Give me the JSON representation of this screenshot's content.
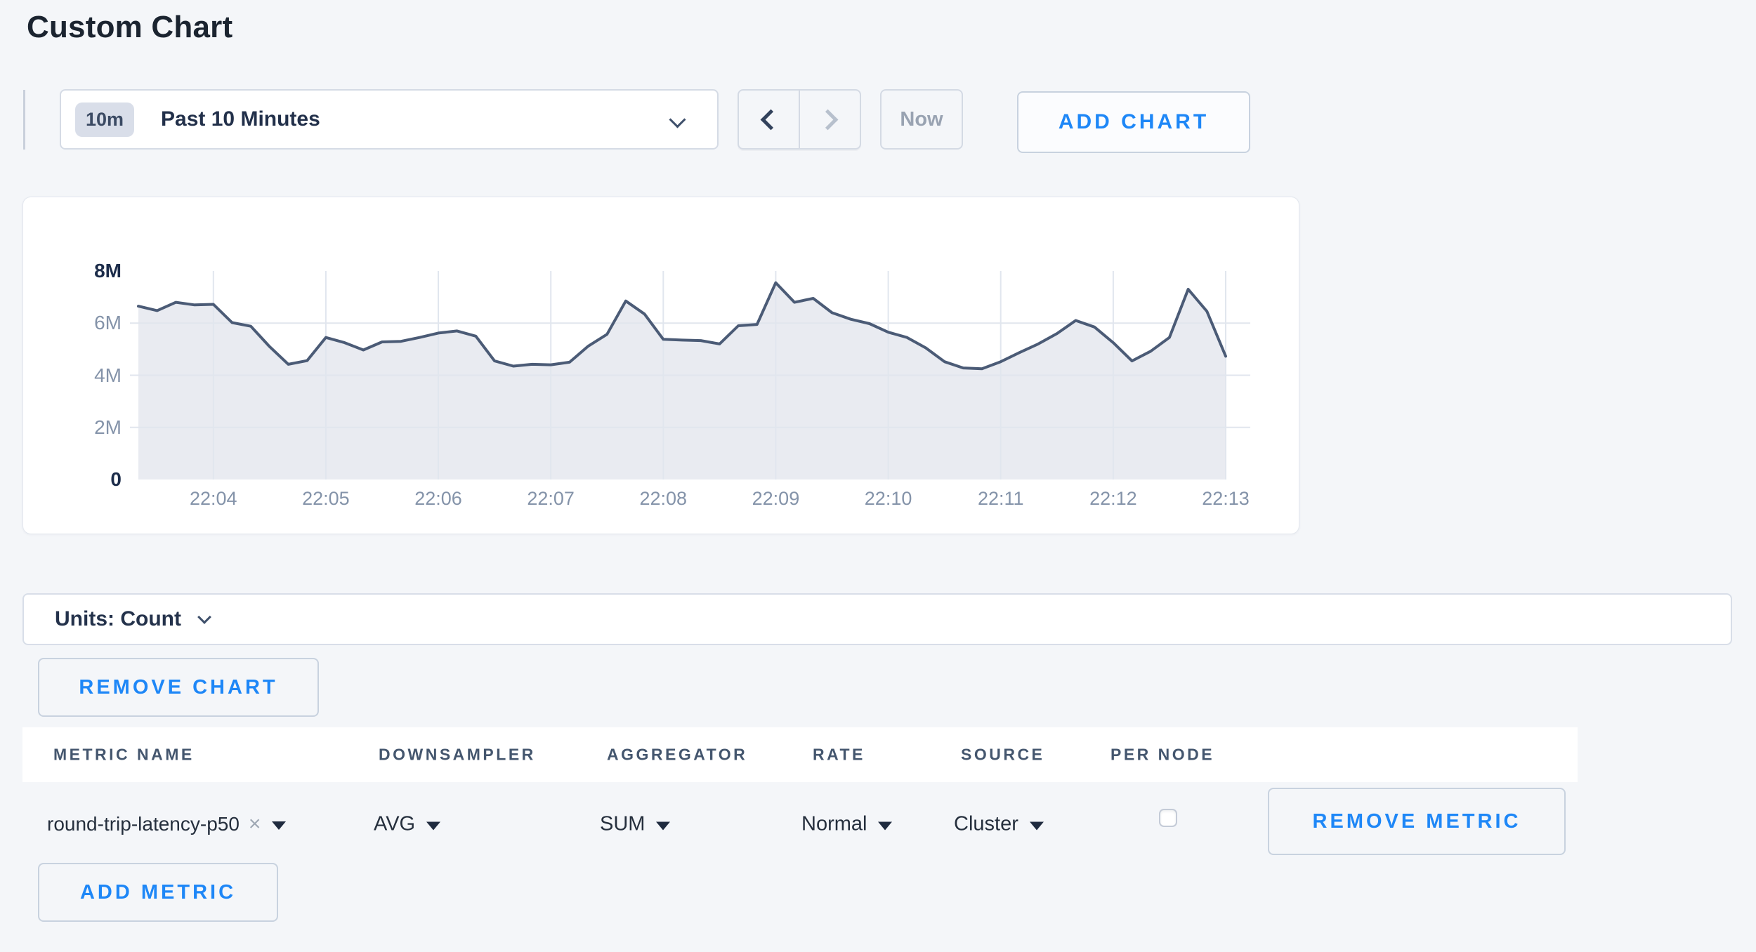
{
  "page": {
    "title": "Custom Chart",
    "background": "#f4f6f9",
    "accent_blue": "#1e87f7"
  },
  "toolbar": {
    "time_range": {
      "badge": "10m",
      "label": "Past 10 Minutes"
    },
    "now_label": "Now",
    "add_chart_label": "ADD CHART"
  },
  "chart_data": {
    "type": "area",
    "title": "",
    "series": [
      {
        "name": "round-trip-latency-p50",
        "unit": "count",
        "values_millions": [
          6.65,
          6.48,
          6.8,
          6.7,
          6.72,
          6.02,
          5.88,
          5.1,
          4.42,
          4.56,
          5.45,
          5.25,
          4.97,
          5.28,
          5.3,
          5.45,
          5.62,
          5.7,
          5.5,
          4.55,
          4.35,
          4.42,
          4.4,
          4.5,
          5.12,
          5.57,
          6.85,
          6.35,
          5.38,
          5.35,
          5.33,
          5.2,
          5.9,
          5.95,
          7.55,
          6.8,
          6.95,
          6.4,
          6.15,
          5.98,
          5.65,
          5.45,
          5.05,
          4.52,
          4.28,
          4.25,
          4.52,
          4.87,
          5.2,
          5.6,
          6.1,
          5.85,
          5.25,
          4.55,
          4.92,
          5.45,
          7.3,
          6.45,
          4.73
        ]
      }
    ],
    "sample_interval_s": 10,
    "x_ticks": [
      "22:04",
      "22:05",
      "22:06",
      "22:07",
      "22:08",
      "22:09",
      "22:10",
      "22:11",
      "22:12",
      "22:13"
    ],
    "x_first_tick_offset_s": 40,
    "x_tick_interval_s": 60,
    "x_span_s": 580,
    "y_ticks": [
      {
        "label": "8M",
        "value_millions": 8,
        "strong": true
      },
      {
        "label": "6M",
        "value_millions": 6,
        "strong": false
      },
      {
        "label": "4M",
        "value_millions": 4,
        "strong": false
      },
      {
        "label": "2M",
        "value_millions": 2,
        "strong": false
      },
      {
        "label": "0",
        "value_millions": 0,
        "strong": true
      }
    ],
    "y_gridlines_millions": [
      2,
      4,
      6
    ],
    "ylim_millions": [
      0,
      8
    ],
    "legend_position": "none",
    "grid": true,
    "colors": {
      "line": "#4b5b76",
      "fill": "#e9ebf1",
      "grid": "#e1e6ee",
      "tick_label": "#8493a9",
      "tick_label_strong": "#1c2c4a"
    }
  },
  "units_bar": {
    "label": "Units: Count"
  },
  "chart_actions": {
    "remove_chart_label": "REMOVE CHART"
  },
  "metrics_table": {
    "columns": [
      "METRIC NAME",
      "DOWNSAMPLER",
      "AGGREGATOR",
      "RATE",
      "SOURCE",
      "PER NODE"
    ],
    "row": {
      "metric_name": "round-trip-latency-p50",
      "remove_tag_glyph": "×",
      "downsampler": "AVG",
      "aggregator": "SUM",
      "rate": "Normal",
      "source": "Cluster",
      "per_node_checked": false,
      "remove_metric_label": "REMOVE METRIC"
    },
    "add_metric_label": "ADD METRIC"
  }
}
